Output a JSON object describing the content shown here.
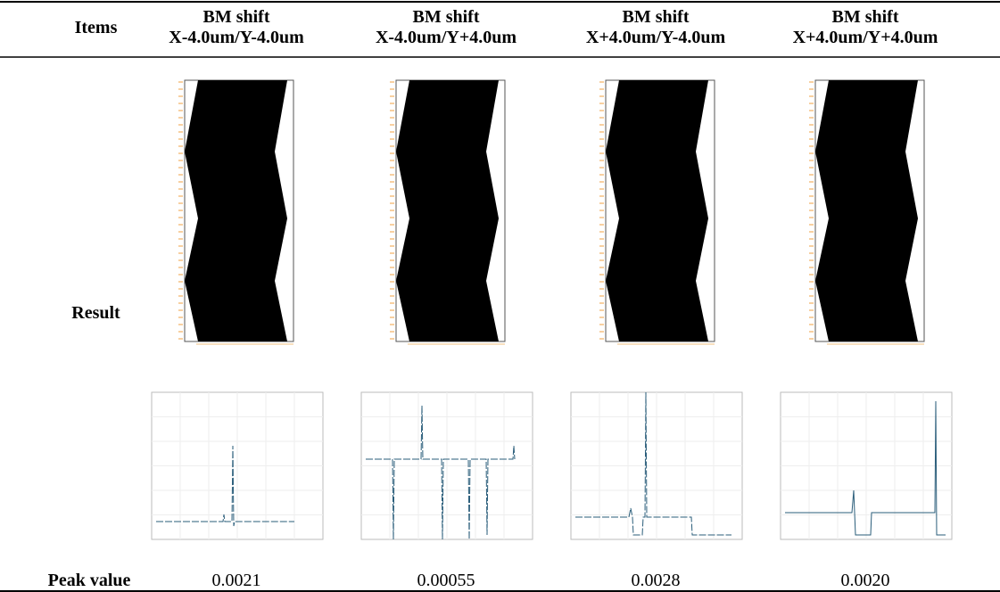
{
  "table": {
    "header": [
      "Items",
      "BM shift\nX-4.0um/Y-4.0um",
      "BM shift\nX-4.0um/Y+4.0um",
      "BM shift\nX+4.0um/Y-4.0um",
      "BM shift\nX+4.0um/Y+4.0um"
    ],
    "rows": [
      [
        "Result"
      ],
      [
        "Peak value",
        "0.0021",
        "0.00055",
        "0.0028",
        "0.0020"
      ]
    ]
  }
}
